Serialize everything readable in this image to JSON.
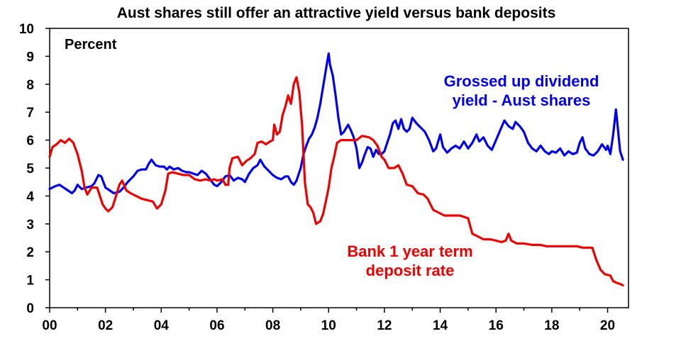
{
  "chart_data": {
    "type": "line",
    "title": "Aust shares still offer an attractive yield versus bank deposits",
    "ylabel": "Percent",
    "xlabel": "",
    "xlim": [
      2000,
      2020.75
    ],
    "ylim": [
      0,
      10
    ],
    "x_ticks": [
      "00",
      "02",
      "04",
      "06",
      "08",
      "10",
      "12",
      "14",
      "16",
      "18",
      "20"
    ],
    "y_ticks": [
      "0",
      "1",
      "2",
      "3",
      "4",
      "5",
      "6",
      "7",
      "8",
      "9",
      "10"
    ],
    "grid": false,
    "legend": "none",
    "series": [
      {
        "name": "Grossed up dividend yield - Aust shares",
        "label_lines": [
          "Grossed up dividend",
          "yield - Aust shares"
        ],
        "color": "#0000ee",
        "points": [
          [
            2000.0,
            4.25
          ],
          [
            2000.2,
            4.35
          ],
          [
            2000.35,
            4.4
          ],
          [
            2000.5,
            4.3
          ],
          [
            2000.65,
            4.2
          ],
          [
            2000.8,
            4.1
          ],
          [
            2000.9,
            4.2
          ],
          [
            2001.0,
            4.4
          ],
          [
            2001.15,
            4.25
          ],
          [
            2001.3,
            4.3
          ],
          [
            2001.5,
            4.35
          ],
          [
            2001.6,
            4.45
          ],
          [
            2001.75,
            4.75
          ],
          [
            2001.85,
            4.7
          ],
          [
            2002.0,
            4.3
          ],
          [
            2002.15,
            4.2
          ],
          [
            2002.3,
            4.1
          ],
          [
            2002.5,
            4.15
          ],
          [
            2002.65,
            4.3
          ],
          [
            2002.8,
            4.5
          ],
          [
            2002.9,
            4.6
          ],
          [
            2003.0,
            4.7
          ],
          [
            2003.15,
            4.9
          ],
          [
            2003.3,
            4.95
          ],
          [
            2003.45,
            4.95
          ],
          [
            2003.55,
            5.15
          ],
          [
            2003.65,
            5.3
          ],
          [
            2003.8,
            5.1
          ],
          [
            2003.95,
            5.05
          ],
          [
            2004.1,
            5.05
          ],
          [
            2004.2,
            4.95
          ],
          [
            2004.3,
            5.05
          ],
          [
            2004.45,
            4.95
          ],
          [
            2004.6,
            5.0
          ],
          [
            2004.75,
            4.9
          ],
          [
            2004.9,
            4.85
          ],
          [
            2005.0,
            4.85
          ],
          [
            2005.15,
            4.8
          ],
          [
            2005.3,
            4.75
          ],
          [
            2005.45,
            4.9
          ],
          [
            2005.6,
            4.8
          ],
          [
            2005.75,
            4.6
          ],
          [
            2005.9,
            4.4
          ],
          [
            2006.0,
            4.35
          ],
          [
            2006.15,
            4.5
          ],
          [
            2006.3,
            4.7
          ],
          [
            2006.45,
            4.75
          ],
          [
            2006.6,
            4.55
          ],
          [
            2006.75,
            4.65
          ],
          [
            2006.9,
            4.6
          ],
          [
            2007.0,
            4.5
          ],
          [
            2007.15,
            4.8
          ],
          [
            2007.3,
            5.0
          ],
          [
            2007.45,
            5.1
          ],
          [
            2007.55,
            5.3
          ],
          [
            2007.7,
            5.05
          ],
          [
            2007.85,
            4.9
          ],
          [
            2008.0,
            4.75
          ],
          [
            2008.15,
            4.65
          ],
          [
            2008.3,
            4.6
          ],
          [
            2008.45,
            4.7
          ],
          [
            2008.55,
            4.7
          ],
          [
            2008.65,
            4.5
          ],
          [
            2008.75,
            4.4
          ],
          [
            2008.85,
            4.55
          ],
          [
            2009.0,
            5.0
          ],
          [
            2009.1,
            5.5
          ],
          [
            2009.2,
            5.8
          ],
          [
            2009.3,
            6.05
          ],
          [
            2009.4,
            6.2
          ],
          [
            2009.5,
            6.45
          ],
          [
            2009.6,
            6.8
          ],
          [
            2009.7,
            7.3
          ],
          [
            2009.8,
            7.9
          ],
          [
            2009.9,
            8.5
          ],
          [
            2010.0,
            9.1
          ],
          [
            2010.05,
            8.7
          ],
          [
            2010.15,
            8.3
          ],
          [
            2010.25,
            7.6
          ],
          [
            2010.35,
            6.8
          ],
          [
            2010.45,
            6.2
          ],
          [
            2010.55,
            6.3
          ],
          [
            2010.7,
            6.55
          ],
          [
            2010.8,
            6.35
          ],
          [
            2010.9,
            6.1
          ],
          [
            2011.0,
            5.7
          ],
          [
            2011.1,
            5.0
          ],
          [
            2011.2,
            5.2
          ],
          [
            2011.3,
            5.5
          ],
          [
            2011.4,
            5.75
          ],
          [
            2011.5,
            5.7
          ],
          [
            2011.6,
            5.4
          ],
          [
            2011.7,
            5.65
          ],
          [
            2011.8,
            5.5
          ],
          [
            2011.9,
            5.5
          ],
          [
            2012.0,
            5.6
          ],
          [
            2012.1,
            5.9
          ],
          [
            2012.2,
            6.2
          ],
          [
            2012.3,
            6.6
          ],
          [
            2012.4,
            6.7
          ],
          [
            2012.5,
            6.4
          ],
          [
            2012.6,
            6.75
          ],
          [
            2012.7,
            6.4
          ],
          [
            2012.8,
            6.3
          ],
          [
            2012.9,
            6.4
          ],
          [
            2013.0,
            6.8
          ],
          [
            2013.15,
            6.6
          ],
          [
            2013.3,
            6.45
          ],
          [
            2013.45,
            6.3
          ],
          [
            2013.6,
            6.0
          ],
          [
            2013.75,
            5.6
          ],
          [
            2013.85,
            5.7
          ],
          [
            2014.0,
            6.2
          ],
          [
            2014.1,
            5.75
          ],
          [
            2014.25,
            5.55
          ],
          [
            2014.4,
            5.7
          ],
          [
            2014.55,
            5.8
          ],
          [
            2014.7,
            5.7
          ],
          [
            2014.85,
            5.95
          ],
          [
            2015.0,
            5.7
          ],
          [
            2015.15,
            5.9
          ],
          [
            2015.3,
            6.2
          ],
          [
            2015.4,
            5.95
          ],
          [
            2015.55,
            6.1
          ],
          [
            2015.7,
            5.8
          ],
          [
            2015.85,
            5.65
          ],
          [
            2016.0,
            6.0
          ],
          [
            2016.15,
            6.35
          ],
          [
            2016.3,
            6.7
          ],
          [
            2016.45,
            6.5
          ],
          [
            2016.6,
            6.4
          ],
          [
            2016.7,
            6.65
          ],
          [
            2016.85,
            6.5
          ],
          [
            2017.0,
            6.3
          ],
          [
            2017.15,
            5.9
          ],
          [
            2017.3,
            5.7
          ],
          [
            2017.45,
            5.6
          ],
          [
            2017.6,
            5.8
          ],
          [
            2017.75,
            5.6
          ],
          [
            2017.9,
            5.5
          ],
          [
            2018.0,
            5.6
          ],
          [
            2018.15,
            5.55
          ],
          [
            2018.3,
            5.7
          ],
          [
            2018.45,
            5.45
          ],
          [
            2018.6,
            5.6
          ],
          [
            2018.75,
            5.5
          ],
          [
            2018.9,
            5.55
          ],
          [
            2019.0,
            5.9
          ],
          [
            2019.1,
            6.1
          ],
          [
            2019.2,
            5.7
          ],
          [
            2019.35,
            5.5
          ],
          [
            2019.5,
            5.45
          ],
          [
            2019.65,
            5.6
          ],
          [
            2019.8,
            5.85
          ],
          [
            2019.95,
            5.65
          ],
          [
            2020.0,
            5.8
          ],
          [
            2020.1,
            5.5
          ],
          [
            2020.2,
            6.2
          ],
          [
            2020.3,
            7.1
          ],
          [
            2020.35,
            6.6
          ],
          [
            2020.45,
            5.6
          ],
          [
            2020.55,
            5.3
          ]
        ]
      },
      {
        "name": "Bank 1 year term deposit rate",
        "label_lines": [
          "Bank 1 year term",
          "deposit rate"
        ],
        "color": "#ee0000",
        "points": [
          [
            2000.0,
            5.4
          ],
          [
            2000.1,
            5.75
          ],
          [
            2000.25,
            5.85
          ],
          [
            2000.4,
            6.0
          ],
          [
            2000.55,
            5.9
          ],
          [
            2000.7,
            6.05
          ],
          [
            2000.85,
            5.9
          ],
          [
            2001.0,
            5.5
          ],
          [
            2001.15,
            4.9
          ],
          [
            2001.25,
            4.3
          ],
          [
            2001.35,
            4.05
          ],
          [
            2001.5,
            4.3
          ],
          [
            2001.6,
            4.3
          ],
          [
            2001.7,
            4.3
          ],
          [
            2001.8,
            4.0
          ],
          [
            2001.9,
            3.7
          ],
          [
            2002.0,
            3.55
          ],
          [
            2002.1,
            3.45
          ],
          [
            2002.25,
            3.6
          ],
          [
            2002.35,
            3.9
          ],
          [
            2002.5,
            4.4
          ],
          [
            2002.6,
            4.55
          ],
          [
            2002.75,
            4.2
          ],
          [
            2002.9,
            4.1
          ],
          [
            2003.1,
            4.0
          ],
          [
            2003.3,
            3.9
          ],
          [
            2003.5,
            3.85
          ],
          [
            2003.7,
            3.8
          ],
          [
            2003.85,
            3.55
          ],
          [
            2004.0,
            3.7
          ],
          [
            2004.15,
            4.2
          ],
          [
            2004.25,
            4.8
          ],
          [
            2004.4,
            4.85
          ],
          [
            2004.6,
            4.8
          ],
          [
            2004.8,
            4.75
          ],
          [
            2005.0,
            4.75
          ],
          [
            2005.2,
            4.6
          ],
          [
            2005.4,
            4.55
          ],
          [
            2005.6,
            4.6
          ],
          [
            2005.75,
            4.55
          ],
          [
            2005.9,
            4.6
          ],
          [
            2006.0,
            4.55
          ],
          [
            2006.2,
            4.6
          ],
          [
            2006.3,
            4.4
          ],
          [
            2006.4,
            4.4
          ],
          [
            2006.45,
            5.0
          ],
          [
            2006.55,
            5.35
          ],
          [
            2006.75,
            5.4
          ],
          [
            2006.9,
            5.1
          ],
          [
            2007.05,
            5.25
          ],
          [
            2007.2,
            5.35
          ],
          [
            2007.35,
            5.5
          ],
          [
            2007.45,
            5.9
          ],
          [
            2007.6,
            5.95
          ],
          [
            2007.75,
            5.85
          ],
          [
            2007.9,
            5.95
          ],
          [
            2008.0,
            6.0
          ],
          [
            2008.05,
            6.55
          ],
          [
            2008.15,
            6.2
          ],
          [
            2008.25,
            6.3
          ],
          [
            2008.35,
            6.9
          ],
          [
            2008.45,
            7.2
          ],
          [
            2008.55,
            7.6
          ],
          [
            2008.65,
            7.3
          ],
          [
            2008.75,
            8.0
          ],
          [
            2008.85,
            8.25
          ],
          [
            2008.95,
            7.7
          ],
          [
            2009.05,
            6.5
          ],
          [
            2009.15,
            4.5
          ],
          [
            2009.25,
            3.7
          ],
          [
            2009.35,
            3.6
          ],
          [
            2009.45,
            3.4
          ],
          [
            2009.55,
            3.0
          ],
          [
            2009.7,
            3.1
          ],
          [
            2009.8,
            3.35
          ],
          [
            2009.9,
            3.8
          ],
          [
            2010.0,
            4.3
          ],
          [
            2010.1,
            5.0
          ],
          [
            2010.2,
            5.4
          ],
          [
            2010.3,
            5.9
          ],
          [
            2010.45,
            6.0
          ],
          [
            2010.8,
            6.0
          ],
          [
            2011.0,
            6.0
          ],
          [
            2011.2,
            6.15
          ],
          [
            2011.45,
            6.1
          ],
          [
            2011.6,
            6.0
          ],
          [
            2011.75,
            5.8
          ],
          [
            2011.9,
            5.4
          ],
          [
            2012.0,
            5.3
          ],
          [
            2012.15,
            5.0
          ],
          [
            2012.35,
            5.0
          ],
          [
            2012.5,
            5.1
          ],
          [
            2012.65,
            4.8
          ],
          [
            2012.8,
            4.4
          ],
          [
            2013.0,
            4.35
          ],
          [
            2013.2,
            4.1
          ],
          [
            2013.4,
            4.05
          ],
          [
            2013.55,
            3.9
          ],
          [
            2013.75,
            3.5
          ],
          [
            2013.95,
            3.4
          ],
          [
            2014.15,
            3.3
          ],
          [
            2014.4,
            3.3
          ],
          [
            2014.7,
            3.3
          ],
          [
            2014.85,
            3.25
          ],
          [
            2015.0,
            3.2
          ],
          [
            2015.15,
            2.65
          ],
          [
            2015.35,
            2.55
          ],
          [
            2015.55,
            2.45
          ],
          [
            2015.8,
            2.45
          ],
          [
            2016.0,
            2.4
          ],
          [
            2016.2,
            2.35
          ],
          [
            2016.35,
            2.4
          ],
          [
            2016.45,
            2.65
          ],
          [
            2016.55,
            2.4
          ],
          [
            2016.75,
            2.3
          ],
          [
            2017.0,
            2.3
          ],
          [
            2017.3,
            2.25
          ],
          [
            2017.6,
            2.25
          ],
          [
            2017.8,
            2.2
          ],
          [
            2018.1,
            2.2
          ],
          [
            2018.5,
            2.2
          ],
          [
            2018.9,
            2.2
          ],
          [
            2019.1,
            2.15
          ],
          [
            2019.45,
            2.15
          ],
          [
            2019.6,
            1.7
          ],
          [
            2019.75,
            1.35
          ],
          [
            2019.9,
            1.2
          ],
          [
            2020.1,
            1.15
          ],
          [
            2020.2,
            0.95
          ],
          [
            2020.3,
            0.9
          ],
          [
            2020.45,
            0.85
          ],
          [
            2020.55,
            0.8
          ]
        ]
      }
    ]
  }
}
